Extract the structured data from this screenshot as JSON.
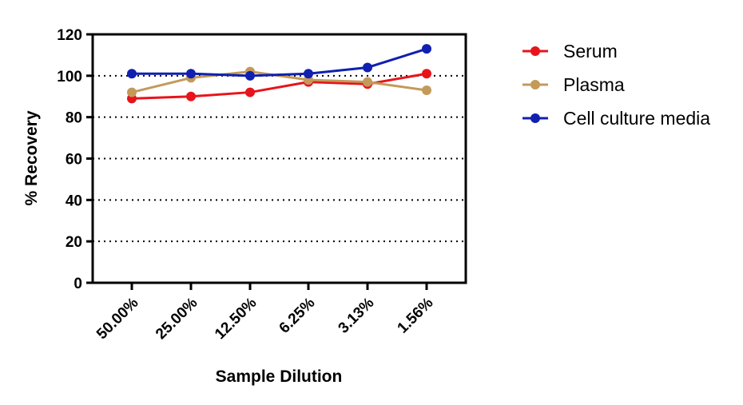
{
  "chart_data": {
    "type": "line",
    "categories": [
      "50.00%",
      "25.00%",
      "12.50%",
      "6.25%",
      "3.13%",
      "1.56%"
    ],
    "series": [
      {
        "name": "Serum",
        "color": "#e8141b",
        "values": [
          89,
          90,
          92,
          97,
          96,
          101
        ]
      },
      {
        "name": "Plasma",
        "color": "#c39a5a",
        "values": [
          92,
          99,
          102,
          98,
          97,
          93
        ]
      },
      {
        "name": "Cell culture media",
        "color": "#1020b0",
        "values": [
          101,
          101,
          100,
          101,
          104,
          113
        ]
      }
    ],
    "xlabel": "Sample Dilution",
    "ylabel": "% Recovery",
    "ylim": [
      0,
      120
    ],
    "yticks": [
      0,
      20,
      40,
      60,
      80,
      100,
      120
    ],
    "grid": "horizontal dotted",
    "legend_position": "right"
  }
}
